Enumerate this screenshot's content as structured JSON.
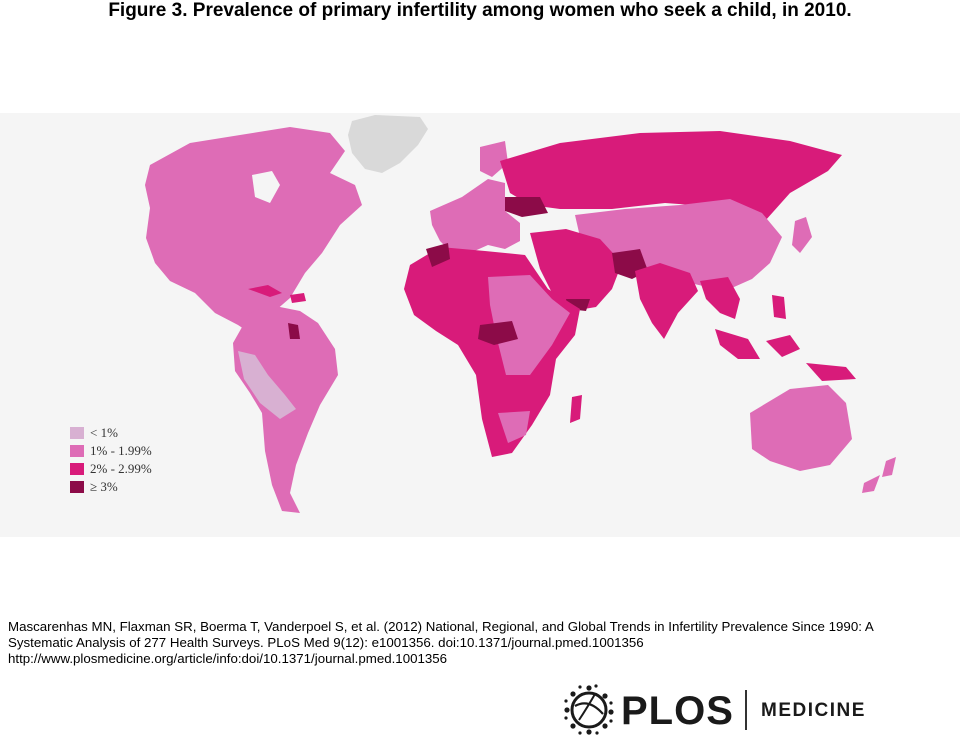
{
  "figure": {
    "title": "Figure 3. Prevalence of primary infertility among women who seek a child, in 2010."
  },
  "map": {
    "legend": [
      {
        "label": "< 1%",
        "color": "#d8b0d2"
      },
      {
        "label": "1% - 1.99%",
        "color": "#de6cb6"
      },
      {
        "label": "2% - 2.99%",
        "color": "#d81b7a"
      },
      {
        "label": "≥ 3%",
        "color": "#8c0b48"
      }
    ],
    "no_data_color": "#d9d9d9"
  },
  "citation": {
    "line1": "Mascarenhas MN, Flaxman SR, Boerma T, Vanderpoel S, et al. (2012) National, Regional, and Global Trends in Infertility Prevalence Since 1990: A",
    "line2": "Systematic Analysis of 277 Health Surveys. PLoS Med 9(12): e1001356. doi:10.1371/journal.pmed.1001356",
    "line3": "http://www.plosmedicine.org/article/info:doi/10.1371/journal.pmed.1001356"
  },
  "logo": {
    "wordmark": "PLOS",
    "journal": "MEDICINE"
  }
}
